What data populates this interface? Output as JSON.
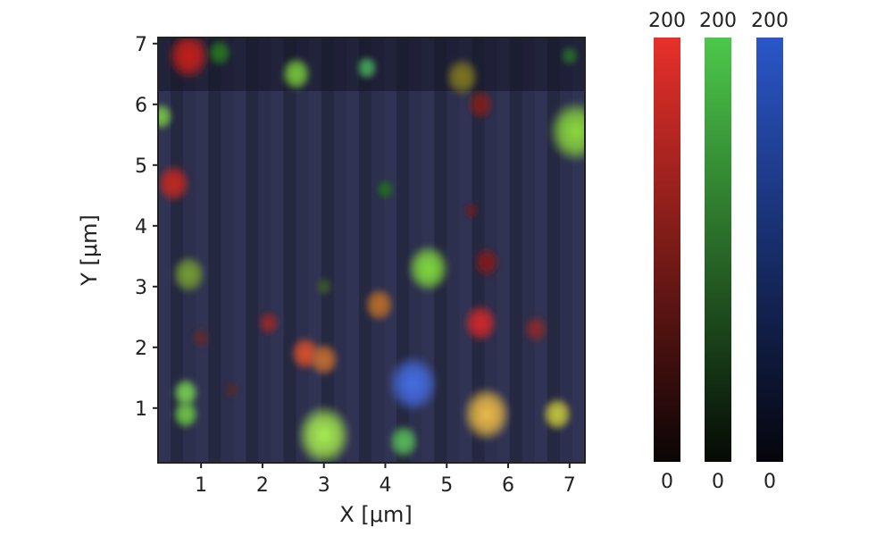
{
  "chart_data": {
    "type": "heatmap",
    "description_channels": "RGB composite fluorescence map",
    "xlabel": "X [μm]",
    "ylabel": "Y [μm]",
    "xlim": [
      0.3,
      7.25
    ],
    "ylim": [
      0.1,
      7.1
    ],
    "xticks": [
      "1",
      "2",
      "3",
      "4",
      "5",
      "6",
      "7"
    ],
    "yticks": [
      "1",
      "2",
      "3",
      "4",
      "5",
      "6",
      "7"
    ],
    "spots": [
      {
        "x": 0.8,
        "y": 6.8,
        "rgb": [
          200,
          30,
          25
        ],
        "r": 0.35
      },
      {
        "x": 1.3,
        "y": 6.85,
        "rgb": [
          40,
          120,
          30
        ],
        "r": 0.2
      },
      {
        "x": 2.55,
        "y": 6.5,
        "rgb": [
          120,
          200,
          60
        ],
        "r": 0.25
      },
      {
        "x": 3.7,
        "y": 6.6,
        "rgb": [
          70,
          170,
          90
        ],
        "r": 0.18
      },
      {
        "x": 5.25,
        "y": 6.45,
        "rgb": [
          130,
          120,
          30
        ],
        "r": 0.28
      },
      {
        "x": 7.0,
        "y": 6.8,
        "rgb": [
          40,
          110,
          40
        ],
        "r": 0.15
      },
      {
        "x": 0.35,
        "y": 5.8,
        "rgb": [
          120,
          200,
          70
        ],
        "r": 0.2
      },
      {
        "x": 5.55,
        "y": 6.0,
        "rgb": [
          130,
          30,
          25
        ],
        "r": 0.22
      },
      {
        "x": 7.1,
        "y": 5.55,
        "rgb": [
          140,
          220,
          60
        ],
        "r": 0.45
      },
      {
        "x": 0.55,
        "y": 4.7,
        "rgb": [
          200,
          40,
          30
        ],
        "r": 0.28
      },
      {
        "x": 4.0,
        "y": 4.6,
        "rgb": [
          30,
          110,
          30
        ],
        "r": 0.15
      },
      {
        "x": 5.4,
        "y": 4.25,
        "rgb": [
          110,
          25,
          30
        ],
        "r": 0.12
      },
      {
        "x": 0.8,
        "y": 3.2,
        "rgb": [
          120,
          160,
          50
        ],
        "r": 0.28
      },
      {
        "x": 4.7,
        "y": 3.3,
        "rgb": [
          130,
          220,
          60
        ],
        "r": 0.35
      },
      {
        "x": 5.65,
        "y": 3.4,
        "rgb": [
          130,
          25,
          25
        ],
        "r": 0.22
      },
      {
        "x": 3.0,
        "y": 3.0,
        "rgb": [
          60,
          90,
          40
        ],
        "r": 0.14
      },
      {
        "x": 3.9,
        "y": 2.7,
        "rgb": [
          190,
          110,
          40
        ],
        "r": 0.25
      },
      {
        "x": 1.0,
        "y": 2.15,
        "rgb": [
          100,
          40,
          40
        ],
        "r": 0.15
      },
      {
        "x": 2.1,
        "y": 2.4,
        "rgb": [
          150,
          40,
          40
        ],
        "r": 0.18
      },
      {
        "x": 5.55,
        "y": 2.4,
        "rgb": [
          210,
          40,
          40
        ],
        "r": 0.28
      },
      {
        "x": 6.45,
        "y": 2.3,
        "rgb": [
          140,
          40,
          40
        ],
        "r": 0.2
      },
      {
        "x": 2.7,
        "y": 1.9,
        "rgb": [
          220,
          80,
          40
        ],
        "r": 0.25
      },
      {
        "x": 3.0,
        "y": 1.8,
        "rgb": [
          200,
          110,
          50
        ],
        "r": 0.25
      },
      {
        "x": 4.45,
        "y": 1.4,
        "rgb": [
          70,
          110,
          230
        ],
        "r": 0.42
      },
      {
        "x": 0.75,
        "y": 1.25,
        "rgb": [
          120,
          210,
          80
        ],
        "r": 0.22
      },
      {
        "x": 0.75,
        "y": 0.9,
        "rgb": [
          110,
          200,
          70
        ],
        "r": 0.22
      },
      {
        "x": 1.5,
        "y": 1.3,
        "rgb": [
          90,
          40,
          40
        ],
        "r": 0.12
      },
      {
        "x": 3.0,
        "y": 0.55,
        "rgb": [
          170,
          240,
          80
        ],
        "r": 0.45
      },
      {
        "x": 4.3,
        "y": 0.45,
        "rgb": [
          90,
          190,
          90
        ],
        "r": 0.25
      },
      {
        "x": 5.65,
        "y": 0.9,
        "rgb": [
          240,
          190,
          70
        ],
        "r": 0.4
      },
      {
        "x": 6.8,
        "y": 0.9,
        "rgb": [
          200,
          200,
          60
        ],
        "r": 0.25
      }
    ],
    "colorbars": [
      {
        "channel": "red",
        "max_label": "200",
        "min_label": "0",
        "color_max": "#e8302a",
        "color_min": "#0a0505"
      },
      {
        "channel": "green",
        "max_label": "200",
        "min_label": "0",
        "color_max": "#4cc84a",
        "color_min": "#050a05"
      },
      {
        "channel": "blue",
        "max_label": "200",
        "min_label": "0",
        "color_max": "#2a56c8",
        "color_min": "#05050c"
      }
    ],
    "colors": {
      "background": "#2b2e4a",
      "frame": "#222222"
    }
  }
}
